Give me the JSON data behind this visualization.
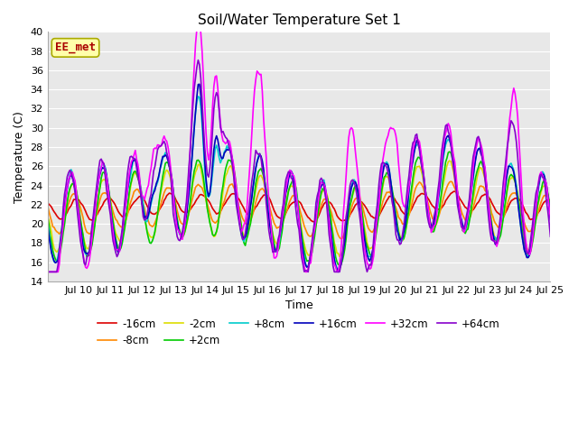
{
  "title": "Soil/Water Temperature Set 1",
  "xlabel": "Time",
  "ylabel": "Temperature (C)",
  "ylim": [
    14,
    40
  ],
  "xlim": [
    0,
    384
  ],
  "yticks": [
    14,
    16,
    18,
    20,
    22,
    24,
    26,
    28,
    30,
    32,
    34,
    36,
    38,
    40
  ],
  "xtick_labels": [
    "Jul 10",
    "Jul 11",
    "Jul 12",
    "Jul 13",
    "Jul 14",
    "Jul 15",
    "Jul 16",
    "Jul 17",
    "Jul 18",
    "Jul 19",
    "Jul 20",
    "Jul 21",
    "Jul 22",
    "Jul 23",
    "Jul 24",
    "Jul 25"
  ],
  "xtick_positions": [
    24,
    48,
    72,
    96,
    120,
    144,
    168,
    192,
    216,
    240,
    264,
    288,
    312,
    336,
    360,
    384
  ],
  "series": [
    {
      "label": "-16cm",
      "color": "#dd0000",
      "lw": 1.2
    },
    {
      "label": "-8cm",
      "color": "#ff8800",
      "lw": 1.2
    },
    {
      "label": "-2cm",
      "color": "#dddd00",
      "lw": 1.2
    },
    {
      "label": "+2cm",
      "color": "#00cc00",
      "lw": 1.2
    },
    {
      "label": "+8cm",
      "color": "#00cccc",
      "lw": 1.2
    },
    {
      "label": "+16cm",
      "color": "#0000bb",
      "lw": 1.2
    },
    {
      "label": "+32cm",
      "color": "#ff00ff",
      "lw": 1.2
    },
    {
      "label": "+64cm",
      "color": "#8800cc",
      "lw": 1.2
    }
  ],
  "annotation_text": "EE_met",
  "annotation_color": "#aa0000",
  "annotation_bg": "#ffffaa",
  "annotation_border": "#aaaa00",
  "fig_bg": "#ffffff",
  "plot_bg": "#e8e8e8",
  "grid_color": "#ffffff",
  "title_fontsize": 11,
  "axis_fontsize": 9,
  "tick_fontsize": 8,
  "legend_fontsize": 8.5
}
